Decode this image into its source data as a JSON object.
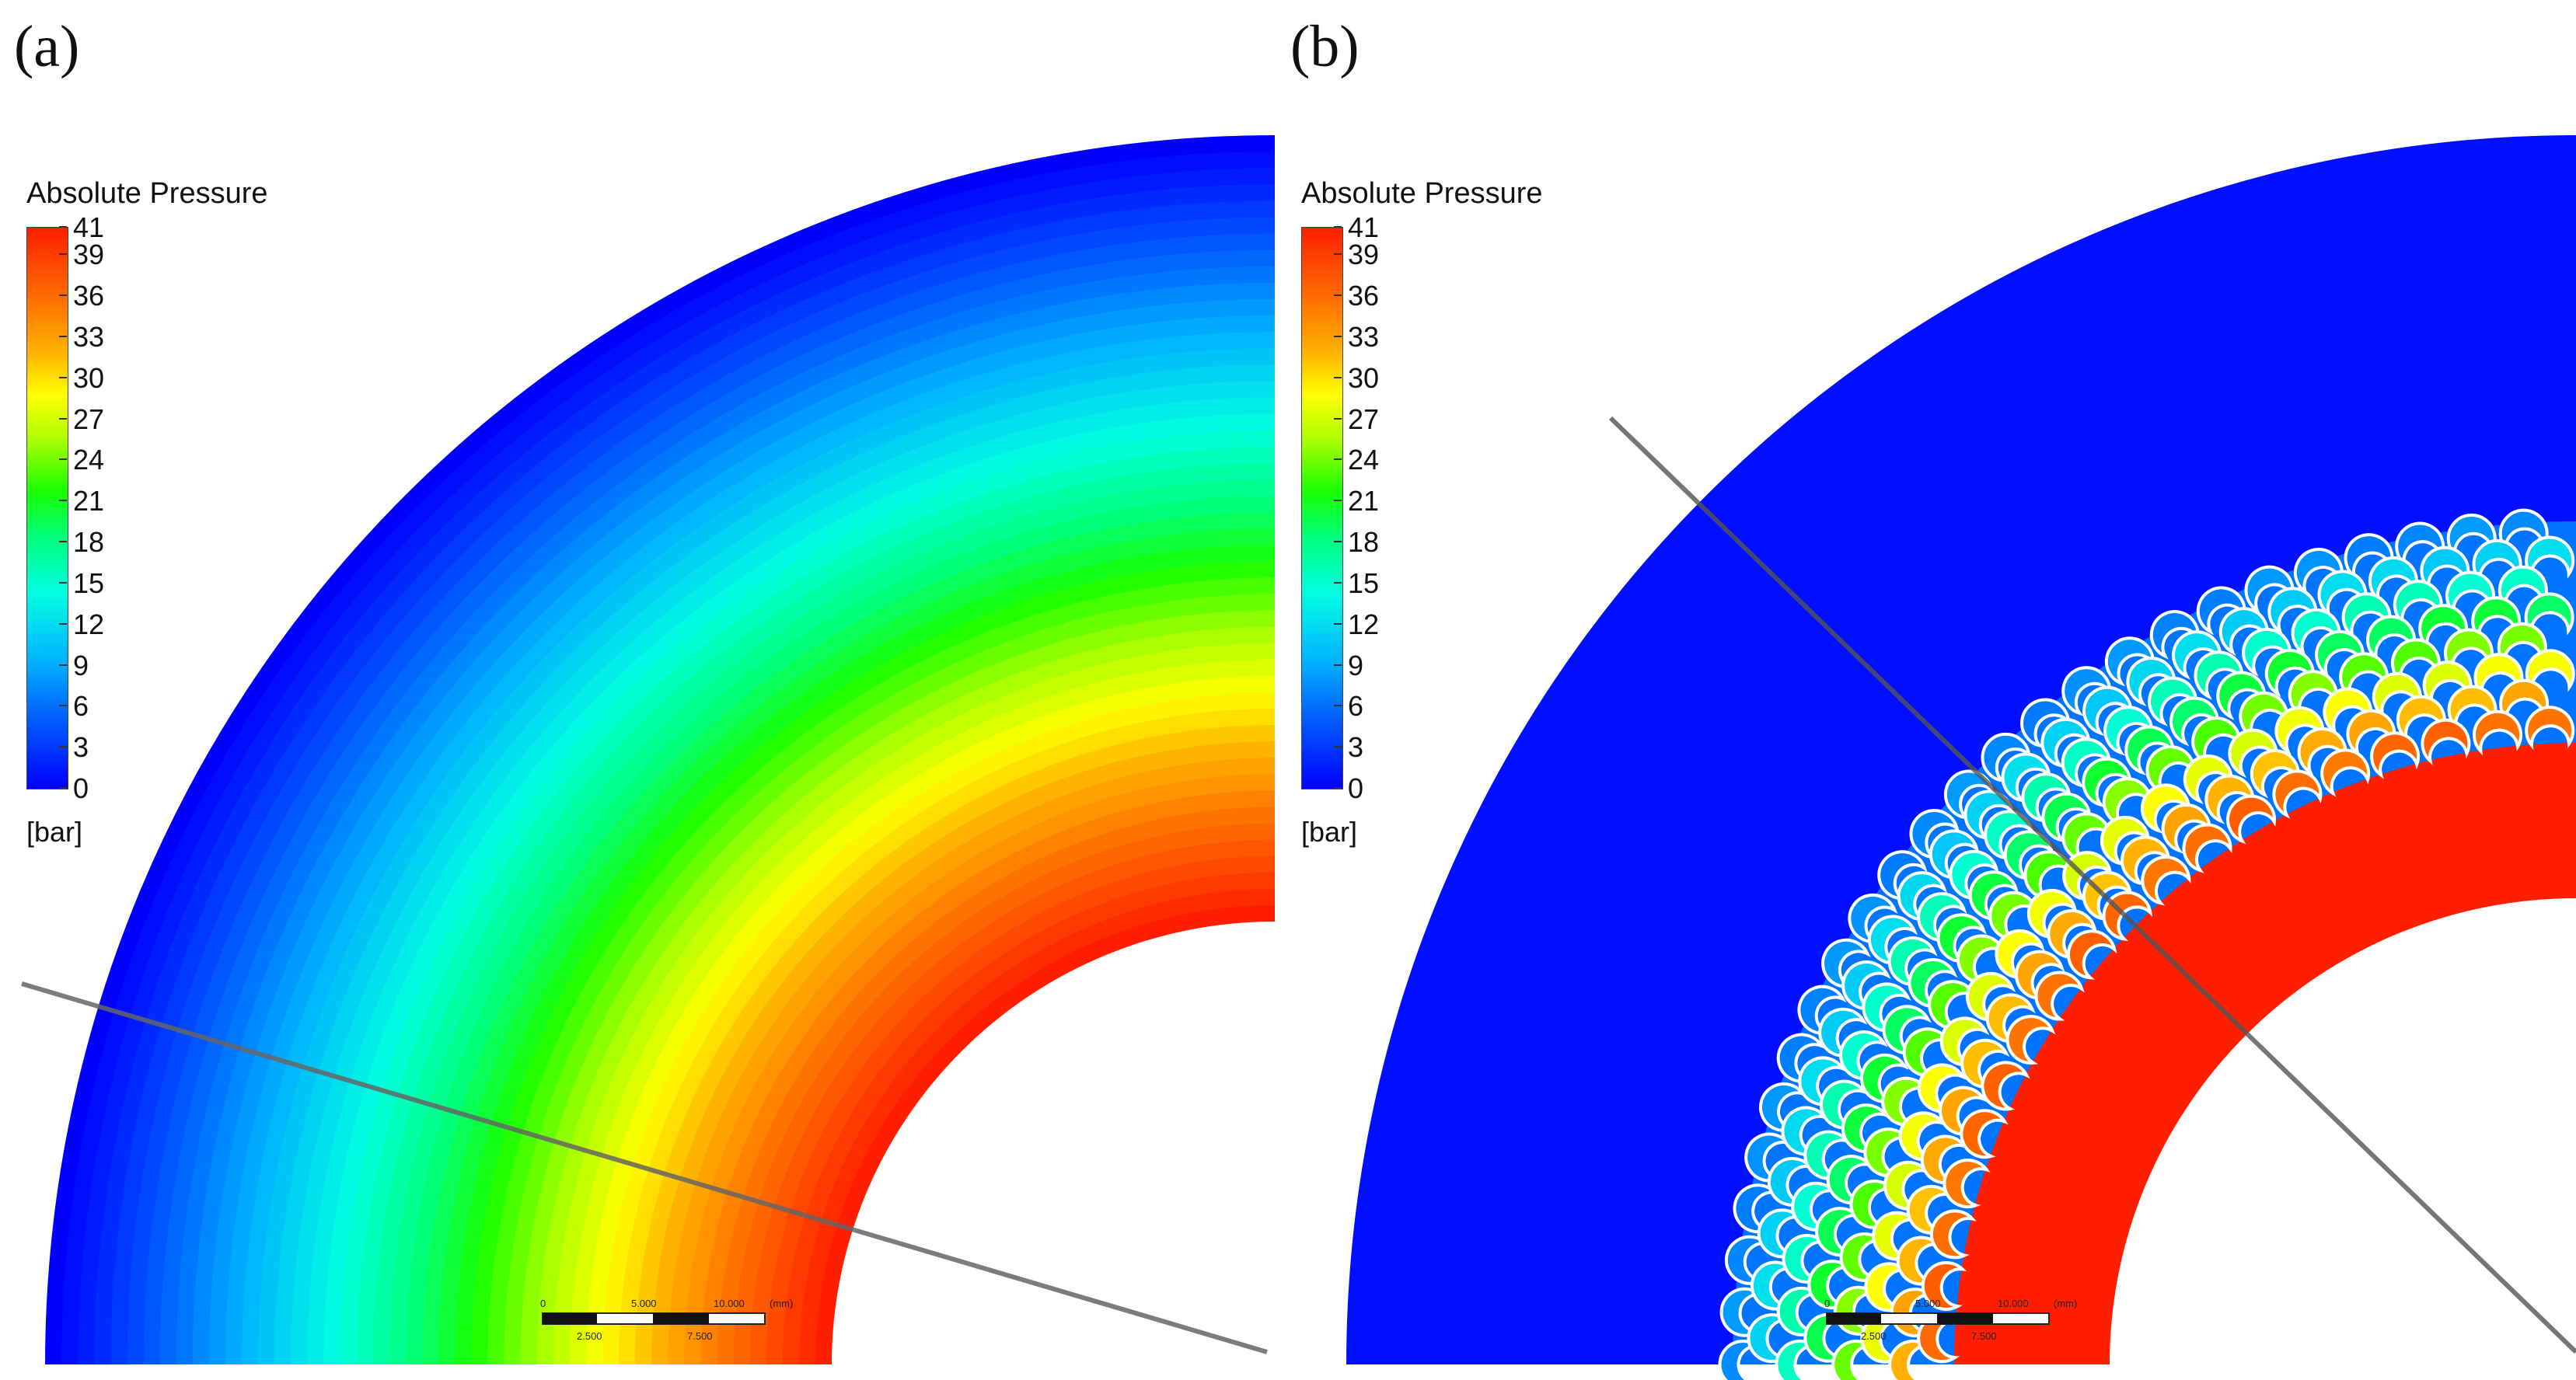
{
  "panels": [
    {
      "label": "(a)",
      "legend": {
        "title": "Absolute Pressure",
        "ticks": [
          "41",
          "39",
          "36",
          "33",
          "30",
          "27",
          "24",
          "21",
          "18",
          "15",
          "12",
          "9",
          "6",
          "3",
          "0"
        ],
        "unit": "[bar]",
        "range": [
          0,
          41
        ]
      },
      "scalebar": {
        "top_labels": [
          "0",
          "5.000",
          "10.000",
          "(mm)"
        ],
        "bottom_labels": [
          "2.500",
          "7.500"
        ]
      }
    },
    {
      "label": "(b)",
      "legend": {
        "title": "Absolute Pressure",
        "ticks": [
          "41",
          "39",
          "36",
          "33",
          "30",
          "27",
          "24",
          "21",
          "18",
          "15",
          "12",
          "9",
          "6",
          "3",
          "0"
        ],
        "unit": "[bar]",
        "range": [
          0,
          41
        ]
      },
      "scalebar": {
        "top_labels": [
          "0",
          "5.000",
          "10.000",
          "(mm)"
        ],
        "bottom_labels": [
          "2.500",
          "7.500"
        ]
      }
    }
  ],
  "colors": {
    "high": "#ff1e00",
    "mid": "#19ff00",
    "low": "#0000ff",
    "background": "#ffffff",
    "cut_line": "#666666"
  }
}
